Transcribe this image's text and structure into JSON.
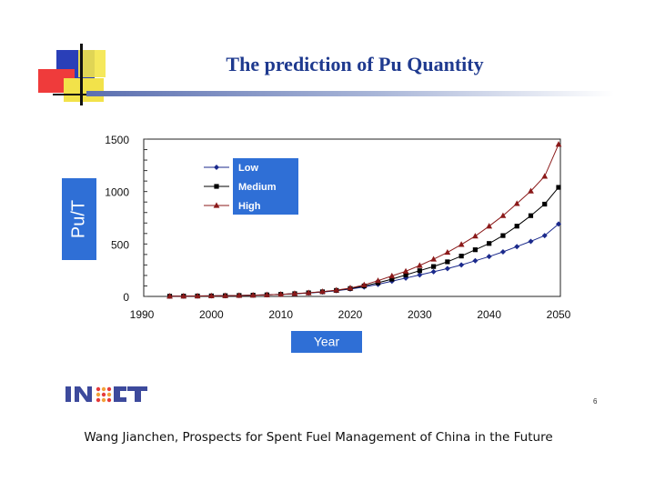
{
  "slide": {
    "title": "The prediction of Pu Quantity",
    "footer": "Wang Jianchen, Prospects for Spent Fuel Management  of China in the Future",
    "page_number": "6",
    "logo_text": "INET"
  },
  "colors": {
    "title": "#1f3a8f",
    "label_box": "#2f6fd6",
    "low": "#1b2a8c",
    "medium": "#000000",
    "high": "#8b1a1a"
  },
  "chart_data": {
    "type": "line",
    "title": "",
    "xlabel": "Year",
    "ylabel": "Pu/T",
    "xlim": [
      1990,
      2050
    ],
    "ylim": [
      0,
      1500
    ],
    "x_ticks": [
      "1990",
      "2000",
      "2010",
      "2020",
      "2030",
      "2040",
      "2050"
    ],
    "y_ticks": [
      "0",
      "500",
      "1000",
      "1500"
    ],
    "legend_position": "top-left",
    "x": [
      1994,
      1996,
      1998,
      2000,
      2002,
      2004,
      2006,
      2008,
      2010,
      2012,
      2014,
      2016,
      2018,
      2020,
      2022,
      2024,
      2026,
      2028,
      2030,
      2032,
      2034,
      2036,
      2038,
      2040,
      2042,
      2044,
      2046,
      2048,
      2050
    ],
    "series": [
      {
        "name": "Low",
        "marker": "diamond",
        "values": [
          2,
          3,
          4,
          5,
          7,
          9,
          12,
          15,
          20,
          25,
          33,
          42,
          55,
          70,
          90,
          115,
          145,
          175,
          205,
          235,
          265,
          300,
          340,
          380,
          425,
          475,
          525,
          580,
          690
        ]
      },
      {
        "name": "Medium",
        "marker": "square",
        "values": [
          2,
          3,
          4,
          5,
          7,
          9,
          12,
          15,
          20,
          26,
          34,
          44,
          57,
          75,
          100,
          130,
          165,
          205,
          245,
          285,
          330,
          385,
          445,
          505,
          580,
          670,
          770,
          880,
          1040
        ]
      },
      {
        "name": "High",
        "marker": "triangle",
        "values": [
          2,
          3,
          4,
          5,
          7,
          9,
          12,
          15,
          20,
          27,
          35,
          46,
          60,
          80,
          110,
          150,
          195,
          240,
          295,
          355,
          420,
          495,
          575,
          670,
          770,
          885,
          1005,
          1145,
          1450
        ]
      }
    ]
  }
}
